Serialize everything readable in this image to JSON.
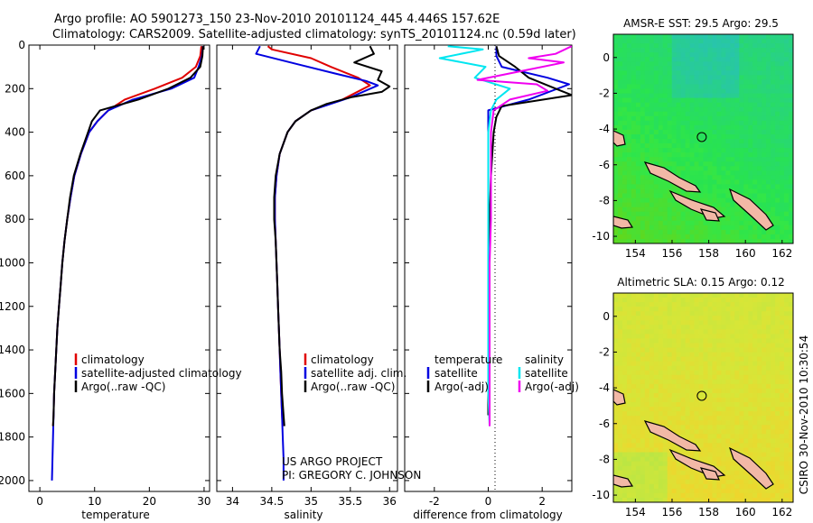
{
  "title": {
    "line1": "Argo profile: AO 5901273_150 23-Nov-2010 20101124_445 4.446S 157.62E",
    "line2": "Climatology: CARS2009. Satellite-adjusted climatology: synTS_20101124.nc (0.59d later)"
  },
  "credit": {
    "project": "US ARGO PROJECT",
    "pi": "PI: GREGORY C. JOHNSON",
    "side": "CSIRO 30-Nov-2010 10:30:54"
  },
  "colors": {
    "climatology": "#e00000",
    "satellite": "#0000e0",
    "argo": "#000000",
    "sat_salinity": "#00e6f0",
    "argo_salinity": "#f000f0",
    "land": "#f2b8a6"
  },
  "chart_data": [
    {
      "type": "line",
      "name": "temperature-profile",
      "xlabel": "temperature",
      "xlim": [
        -2,
        31
      ],
      "ylim": [
        2050,
        0
      ],
      "xticks": [
        0,
        10,
        20,
        30
      ],
      "yticks": [
        0,
        200,
        400,
        600,
        800,
        1000,
        1200,
        1400,
        1600,
        1800,
        2000
      ],
      "legend": [
        "climatology",
        "satellite-adjusted climatology",
        "Argo(..raw -QC)"
      ],
      "series": [
        {
          "name": "climatology",
          "color": "#e00000",
          "points": [
            [
              29.5,
              5
            ],
            [
              29.3,
              50
            ],
            [
              28.5,
              100
            ],
            [
              26,
              150
            ],
            [
              21,
              200
            ],
            [
              15.5,
              250
            ],
            [
              12.5,
              300
            ],
            [
              10.5,
              350
            ],
            [
              9,
              400
            ],
            [
              7.5,
              500
            ],
            [
              6.3,
              600
            ],
            [
              5.6,
              700
            ],
            [
              5,
              800
            ],
            [
              4.5,
              900
            ],
            [
              4.1,
              1000
            ],
            [
              3.8,
              1100
            ],
            [
              3.5,
              1200
            ],
            [
              3.2,
              1300
            ],
            [
              3,
              1400
            ],
            [
              2.8,
              1500
            ],
            [
              2.6,
              1600
            ],
            [
              2.5,
              1700
            ],
            [
              2.4,
              1750
            ]
          ]
        },
        {
          "name": "satellite-adjusted climatology",
          "color": "#0000e0",
          "points": [
            [
              29.8,
              5
            ],
            [
              29.6,
              50
            ],
            [
              29,
              100
            ],
            [
              28.2,
              150
            ],
            [
              24,
              200
            ],
            [
              17,
              250
            ],
            [
              12.5,
              300
            ],
            [
              10.5,
              350
            ],
            [
              9,
              400
            ],
            [
              7.5,
              500
            ],
            [
              6.3,
              600
            ],
            [
              5.6,
              700
            ],
            [
              5,
              800
            ],
            [
              4.5,
              900
            ],
            [
              4.1,
              1000
            ],
            [
              3.8,
              1100
            ],
            [
              3.5,
              1200
            ],
            [
              3.2,
              1300
            ],
            [
              3,
              1400
            ],
            [
              2.8,
              1500
            ],
            [
              2.6,
              1600
            ],
            [
              2.5,
              1700
            ],
            [
              2.4,
              1800
            ],
            [
              2.3,
              1900
            ],
            [
              2.2,
              2000
            ]
          ]
        },
        {
          "name": "Argo(..raw -QC)",
          "color": "#000000",
          "points": [
            [
              29.8,
              5
            ],
            [
              29.7,
              50
            ],
            [
              29.3,
              100
            ],
            [
              27.5,
              150
            ],
            [
              23.5,
              200
            ],
            [
              18,
              250
            ],
            [
              11,
              300
            ],
            [
              9.5,
              350
            ],
            [
              8.8,
              400
            ],
            [
              7.4,
              500
            ],
            [
              6.2,
              600
            ],
            [
              5.5,
              700
            ],
            [
              5,
              800
            ],
            [
              4.5,
              900
            ],
            [
              4.1,
              1000
            ],
            [
              3.8,
              1100
            ],
            [
              3.5,
              1200
            ],
            [
              3.2,
              1300
            ],
            [
              3,
              1400
            ],
            [
              2.8,
              1500
            ],
            [
              2.6,
              1600
            ],
            [
              2.5,
              1700
            ],
            [
              2.4,
              1750
            ]
          ]
        }
      ]
    },
    {
      "type": "line",
      "name": "salinity-profile",
      "xlabel": "salinity",
      "xlim": [
        33.8,
        36.1
      ],
      "ylim": [
        2050,
        0
      ],
      "xticks": [
        34,
        34.5,
        35,
        35.5,
        36
      ],
      "legend": [
        "climatology",
        "satellite adj. clim.",
        "Argo(..raw -QC)"
      ],
      "series": [
        {
          "name": "climatology",
          "color": "#e00000",
          "points": [
            [
              34.45,
              5
            ],
            [
              34.5,
              20
            ],
            [
              35.0,
              60
            ],
            [
              35.25,
              100
            ],
            [
              35.6,
              150
            ],
            [
              35.75,
              185
            ],
            [
              35.4,
              250
            ],
            [
              35.0,
              300
            ],
            [
              34.8,
              350
            ],
            [
              34.7,
              400
            ],
            [
              34.6,
              500
            ],
            [
              34.56,
              600
            ],
            [
              34.54,
              700
            ],
            [
              34.54,
              800
            ],
            [
              34.55,
              900
            ],
            [
              34.56,
              1000
            ],
            [
              34.57,
              1100
            ],
            [
              34.58,
              1200
            ],
            [
              34.59,
              1300
            ],
            [
              34.6,
              1400
            ],
            [
              34.61,
              1500
            ],
            [
              34.62,
              1600
            ],
            [
              34.63,
              1700
            ],
            [
              34.64,
              1750
            ]
          ]
        },
        {
          "name": "satellite adj. clim.",
          "color": "#0000e0",
          "points": [
            [
              34.35,
              5
            ],
            [
              34.3,
              40
            ],
            [
              34.85,
              90
            ],
            [
              35.3,
              130
            ],
            [
              35.7,
              165
            ],
            [
              35.85,
              185
            ],
            [
              35.5,
              240
            ],
            [
              35.0,
              300
            ],
            [
              34.8,
              350
            ],
            [
              34.7,
              400
            ],
            [
              34.6,
              500
            ],
            [
              34.56,
              600
            ],
            [
              34.54,
              700
            ],
            [
              34.54,
              800
            ],
            [
              34.55,
              900
            ],
            [
              34.56,
              1000
            ],
            [
              34.57,
              1100
            ],
            [
              34.58,
              1200
            ],
            [
              34.59,
              1300
            ],
            [
              34.6,
              1400
            ],
            [
              34.61,
              1500
            ],
            [
              34.62,
              1600
            ],
            [
              34.63,
              1700
            ],
            [
              34.64,
              1800
            ],
            [
              34.65,
              1900
            ],
            [
              34.65,
              2000
            ]
          ]
        },
        {
          "name": "Argo(..raw -QC)",
          "color": "#000000",
          "points": [
            [
              35.75,
              5
            ],
            [
              35.8,
              40
            ],
            [
              35.55,
              80
            ],
            [
              35.9,
              120
            ],
            [
              35.85,
              160
            ],
            [
              36.0,
              190
            ],
            [
              35.9,
              215
            ],
            [
              35.5,
              240
            ],
            [
              35.2,
              270
            ],
            [
              35.0,
              300
            ],
            [
              34.8,
              350
            ],
            [
              34.7,
              400
            ],
            [
              34.6,
              500
            ],
            [
              34.55,
              600
            ],
            [
              34.53,
              700
            ],
            [
              34.53,
              800
            ],
            [
              34.55,
              900
            ],
            [
              34.56,
              1000
            ],
            [
              34.57,
              1100
            ],
            [
              34.58,
              1200
            ],
            [
              34.59,
              1300
            ],
            [
              34.6,
              1400
            ],
            [
              34.62,
              1500
            ],
            [
              34.63,
              1600
            ],
            [
              34.65,
              1700
            ],
            [
              34.66,
              1750
            ]
          ]
        }
      ]
    },
    {
      "type": "line",
      "name": "difference-profile",
      "xlabel": "difference from climatology",
      "xlim": [
        -3.1,
        3.1
      ],
      "ylim": [
        2050,
        0
      ],
      "xticks": [
        -2,
        0,
        2
      ],
      "legend_temperature": {
        "heading": "temperature",
        "items": [
          "satellite",
          "Argo(-adj)"
        ]
      },
      "legend_salinity": {
        "heading": "salinity",
        "items": [
          "satellite",
          "Argo(-adj)"
        ]
      },
      "series": [
        {
          "name": "temperature satellite",
          "color": "#0000e0",
          "points": [
            [
              0.3,
              5
            ],
            [
              0.3,
              50
            ],
            [
              0.5,
              100
            ],
            [
              2.2,
              150
            ],
            [
              3,
              180
            ],
            [
              1.5,
              250
            ],
            [
              0,
              300
            ],
            [
              0,
              350
            ],
            [
              0,
              400
            ],
            [
              0,
              600
            ],
            [
              0,
              800
            ],
            [
              0,
              1000
            ],
            [
              0,
              1200
            ],
            [
              0,
              1400
            ],
            [
              0,
              1600
            ],
            [
              0,
              1700
            ]
          ]
        },
        {
          "name": "temperature Argo(-adj)",
          "color": "#000000",
          "points": [
            [
              0.3,
              5
            ],
            [
              0.4,
              50
            ],
            [
              1,
              100
            ],
            [
              1.5,
              150
            ],
            [
              2.5,
              200
            ],
            [
              3.1,
              230
            ],
            [
              0.5,
              280
            ],
            [
              0.3,
              330
            ],
            [
              0.2,
              400
            ],
            [
              0.1,
              600
            ],
            [
              0.05,
              800
            ],
            [
              0,
              1000
            ],
            [
              0,
              1200
            ],
            [
              0,
              1400
            ],
            [
              0,
              1600
            ],
            [
              0,
              1700
            ]
          ]
        },
        {
          "name": "salinity satellite",
          "color": "#00e6f0",
          "points": [
            [
              -1.5,
              5
            ],
            [
              -0.2,
              20
            ],
            [
              -1.8,
              60
            ],
            [
              -0.1,
              100
            ],
            [
              -0.5,
              150
            ],
            [
              0.8,
              200
            ],
            [
              0.3,
              250
            ],
            [
              0.1,
              300
            ],
            [
              0,
              400
            ],
            [
              0,
              600
            ],
            [
              0,
              800
            ],
            [
              0,
              1000
            ],
            [
              0,
              1200
            ],
            [
              0,
              1400
            ],
            [
              0,
              1600
            ],
            [
              0.05,
              1750
            ]
          ]
        },
        {
          "name": "salinity Argo(-adj)",
          "color": "#f000f0",
          "points": [
            [
              3.1,
              5
            ],
            [
              2.5,
              40
            ],
            [
              1.5,
              60
            ],
            [
              2.8,
              80
            ],
            [
              1.2,
              120
            ],
            [
              -0.4,
              160
            ],
            [
              1.8,
              180
            ],
            [
              2.2,
              210
            ],
            [
              0.8,
              250
            ],
            [
              0.2,
              300
            ],
            [
              0.1,
              400
            ],
            [
              0.1,
              600
            ],
            [
              0.1,
              800
            ],
            [
              0.05,
              1000
            ],
            [
              0.05,
              1200
            ],
            [
              0.05,
              1400
            ],
            [
              0.05,
              1600
            ],
            [
              0.05,
              1750
            ]
          ]
        }
      ]
    },
    {
      "type": "heatmap",
      "name": "sst-map",
      "title": "AMSR-E SST: 29.5 Argo: 29.5",
      "xlim": [
        152.8,
        162.6
      ],
      "ylim": [
        -10.4,
        1.3
      ],
      "xticks": [
        154,
        156,
        158,
        160,
        162
      ],
      "yticks": [
        0,
        -2,
        -4,
        -6,
        -8,
        -10
      ],
      "argo_position": [
        157.62,
        -4.446
      ],
      "palette": "cool"
    },
    {
      "type": "heatmap",
      "name": "sla-map",
      "title": "Altimetric SLA: 0.15 Argo: 0.12",
      "xlim": [
        152.8,
        162.6
      ],
      "ylim": [
        -10.4,
        1.3
      ],
      "xticks": [
        154,
        156,
        158,
        160,
        162
      ],
      "yticks": [
        0,
        -2,
        -4,
        -6,
        -8,
        -10
      ],
      "argo_position": [
        157.62,
        -4.446
      ],
      "palette": "warm"
    }
  ]
}
